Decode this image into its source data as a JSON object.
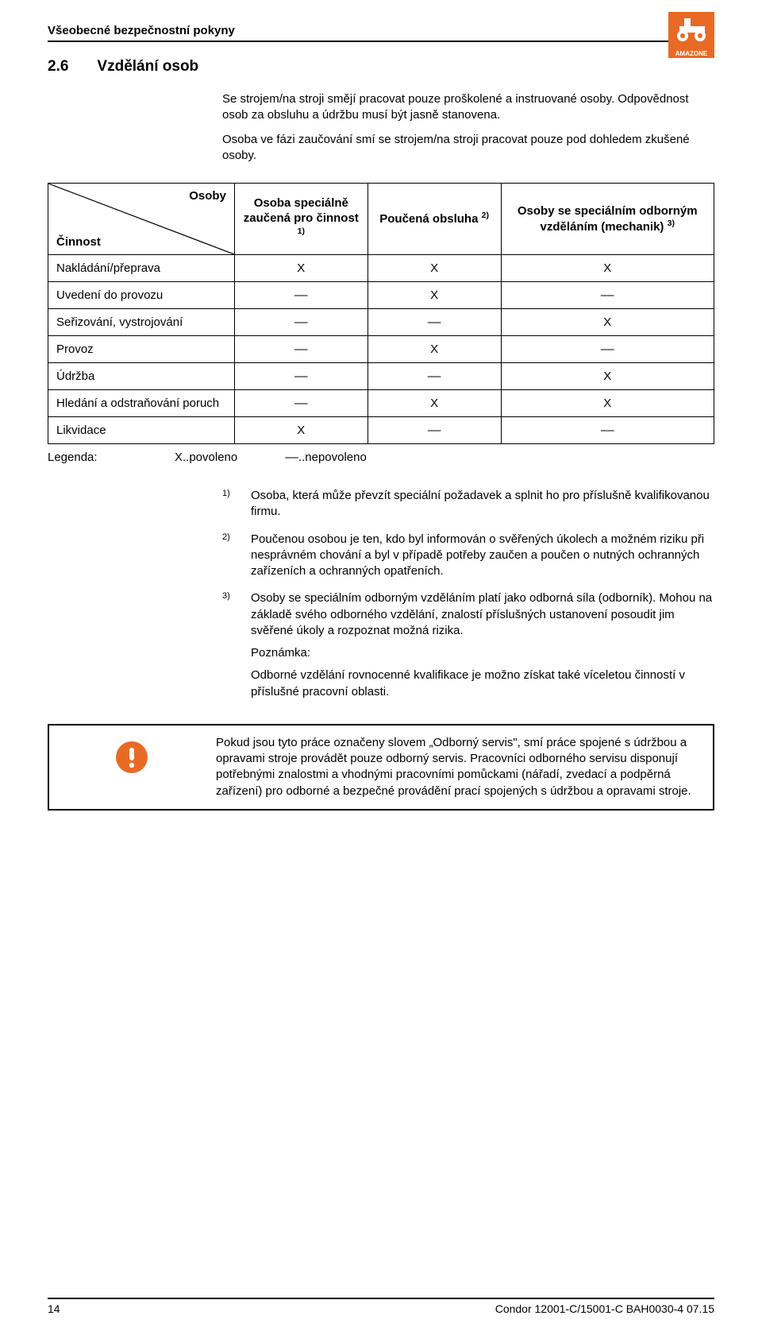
{
  "brand": {
    "logo_bg": "#e96a24",
    "logo_text": "AMAZONE",
    "logo_text_color": "#ffffff"
  },
  "header": {
    "title": "Všeobecné bezpečnostní pokyny"
  },
  "section": {
    "number": "2.6",
    "title": "Vzdělání osob"
  },
  "intro": {
    "p1": "Se strojem/na stroji smějí pracovat pouze proškolené a instruované osoby. Odpovědnost osob za obsluhu a údržbu musí být jasně stanovena.",
    "p2": "Osoba ve fázi zaučování smí se strojem/na stroji pracovat pouze pod dohledem zkušené osoby."
  },
  "table": {
    "diag_top": "Osoby",
    "diag_bottom": "Činnost",
    "col1": "Osoba speciálně zaučená pro činnost ",
    "col1_sup": "1)",
    "col2": "Poučená obsluha ",
    "col2_sup": "2)",
    "col3": "Osoby se speciálním odborným vzděláním (mechanik) ",
    "col3_sup": "3)",
    "rows": [
      {
        "label": "Nakládání/přeprava",
        "c1": "X",
        "c2": "X",
        "c3": "X"
      },
      {
        "label": "Uvedení do provozu",
        "c1": "––",
        "c2": "X",
        "c3": "––"
      },
      {
        "label": "Seřizování, vystrojování",
        "c1": "––",
        "c2": "––",
        "c3": "X"
      },
      {
        "label": "Provoz",
        "c1": "––",
        "c2": "X",
        "c3": "––"
      },
      {
        "label": "Údržba",
        "c1": "––",
        "c2": "––",
        "c3": "X"
      },
      {
        "label": "Hledání a odstraňování poruch",
        "c1": "––",
        "c2": "X",
        "c3": "X"
      },
      {
        "label": "Likvidace",
        "c1": "X",
        "c2": "––",
        "c3": "––"
      }
    ]
  },
  "legend": {
    "label": "Legenda:",
    "allowed": "X..povoleno",
    "not_allowed": "––..nepovoleno"
  },
  "footnotes": {
    "f1_num": "1)",
    "f1_text": "Osoba, která může převzít speciální požadavek a splnit ho pro příslušně kvalifikovanou firmu.",
    "f2_num": "2)",
    "f2_text": "Poučenou osobou je ten, kdo byl informován o svěřených úkolech a možném riziku při nesprávném chování a byl v případě potřeby zaučen a poučen o nutných ochranných zařízeních a ochranných opatřeních.",
    "f3_num": "3)",
    "f3_text": "Osoby se speciálním odborným vzděláním platí jako odborná síla (odborník). Mohou na základě svého odborného vzdělání, znalostí příslušných ustanovení posoudit jim svěřené úkoly a rozpoznat možná rizika.",
    "f3_note_label": "Poznámka:",
    "f3_note_text": "Odborné vzdělání rovnocenné kvalifikace je možno získat také víceletou činností v příslušné pracovní oblasti."
  },
  "warning": {
    "icon_color": "#e96a24",
    "text": "Pokud jsou tyto práce označeny slovem „Odborný servis\", smí práce spojené s údržbou a opravami stroje provádět pouze odborný servis. Pracovníci odborného servisu disponují potřebnými znalostmi a vhodnými pracovními pomůckami (nářadí, zvedací a podpěrná zařízení) pro odborné a bezpečné provádění prací spojených s údržbou a opravami stroje."
  },
  "footer": {
    "page": "14",
    "doc": "Condor 12001-C/15001-C  BAH0030-4  07.15"
  }
}
